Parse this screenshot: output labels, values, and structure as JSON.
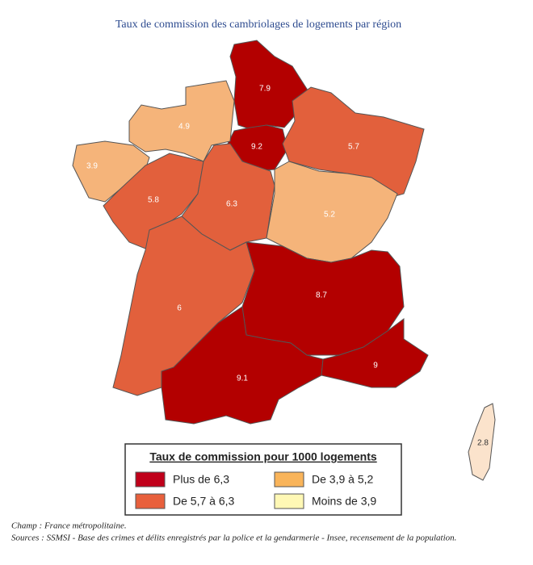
{
  "title": "Taux de commission des cambriolages de logements par région",
  "regions": [
    {
      "value": 7.9,
      "color": "#b30000"
    },
    {
      "value": 9.2,
      "color": "#b30000"
    },
    {
      "value": 5.7,
      "color": "#e2603c"
    },
    {
      "value": 4.9,
      "color": "#f5b47a"
    },
    {
      "value": 3.9,
      "color": "#f5b47a"
    },
    {
      "value": 5.8,
      "color": "#e2603c"
    },
    {
      "value": 6.3,
      "color": "#e2603c"
    },
    {
      "value": 5.2,
      "color": "#f5b47a"
    },
    {
      "value": 6.0,
      "color": "#e2603c"
    },
    {
      "value": 8.7,
      "color": "#b30000"
    },
    {
      "value": 9.1,
      "color": "#b30000"
    },
    {
      "value": 9.0,
      "color": "#b30000"
    },
    {
      "value": 2.8,
      "color": "#fbe3cc"
    }
  ],
  "legend": {
    "title": "Taux de commission pour 1000 logements",
    "items": [
      {
        "label": "Plus de 6,3",
        "color": "#c0001a"
      },
      {
        "label": "De 3,9 à 5,2",
        "color": "#f9b45a"
      },
      {
        "label": "De 5,7 à 6,3",
        "color": "#e8603c"
      },
      {
        "label": "Moins de 3,9",
        "color": "#fff8b5"
      }
    ]
  },
  "notes": [
    "Champ : France métropolitaine.",
    "Sources  : SSMSI - Base des crimes et délits enregistrés par la police et la gendarmerie - Insee, recensement de la population."
  ]
}
